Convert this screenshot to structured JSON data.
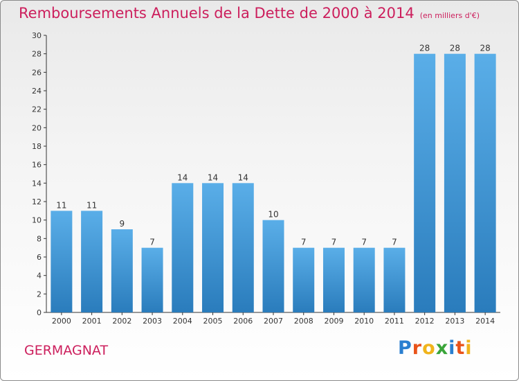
{
  "title": "Remboursements Annuels de la Dette de 2000 à 2014",
  "subtitle": "(en milliers d'€)",
  "commune": "GERMAGNAT",
  "logo": {
    "text": "Proxiti",
    "letters": [
      "P",
      "r",
      "o",
      "x",
      "i",
      "t",
      "i"
    ],
    "colors": [
      "#2a7fd0",
      "#e9531a",
      "#f0b41c",
      "#3aa53a",
      "#2a7fd0",
      "#e9531a",
      "#f0b41c"
    ]
  },
  "colors": {
    "title": "#cc1e5c",
    "bar_light": "#5aaee8",
    "bar_dark": "#2a7cbc",
    "axis": "#333333"
  },
  "chart_data": {
    "type": "bar",
    "title": "Remboursements Annuels de la Dette de 2000 à 2014",
    "xlabel": "",
    "ylabel": "",
    "categories": [
      "2000",
      "2001",
      "2002",
      "2003",
      "2004",
      "2005",
      "2006",
      "2007",
      "2008",
      "2009",
      "2010",
      "2011",
      "2012",
      "2013",
      "2014"
    ],
    "values": [
      11,
      11,
      9,
      7,
      14,
      14,
      14,
      10,
      7,
      7,
      7,
      7,
      28,
      28,
      28
    ],
    "ylim": [
      0,
      30
    ],
    "yticks": [
      0,
      2,
      4,
      6,
      8,
      10,
      12,
      14,
      16,
      18,
      20,
      22,
      24,
      26,
      28,
      30
    ],
    "grid": false,
    "data_labels": true
  }
}
